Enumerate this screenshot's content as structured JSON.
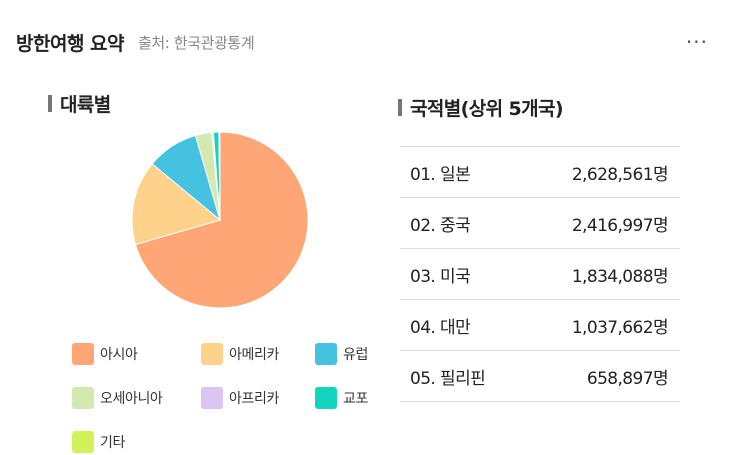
{
  "header": {
    "title": "방한여행 요약",
    "source": "출처: 한국관광통계",
    "more_label": "···"
  },
  "continent": {
    "title": "대륙별"
  },
  "nation": {
    "title": "국적별(상위 5개국)",
    "rows": [
      {
        "name": "01. 일본",
        "value": "2,628,561명"
      },
      {
        "name": "02. 중국",
        "value": "2,416,997명"
      },
      {
        "name": "03. 미국",
        "value": "1,834,088명"
      },
      {
        "name": "04. 대만",
        "value": "1,037,662명"
      },
      {
        "name": "05. 필리핀",
        "value": "658,897명"
      }
    ]
  },
  "chart_data": {
    "type": "pie",
    "title": "대륙별",
    "legend_position": "bottom",
    "categories": [
      "아시아",
      "아메리카",
      "유럽",
      "오세아니아",
      "아프리카",
      "교포",
      "기타"
    ],
    "values": [
      70.5,
      15.5,
      9.5,
      3.0,
      0.3,
      1.0,
      0.2
    ],
    "colors": [
      "#fea675",
      "#fed28a",
      "#44c2e0",
      "#d4e9b0",
      "#d9c4f2",
      "#14d4c0",
      "#d3f25a"
    ]
  }
}
